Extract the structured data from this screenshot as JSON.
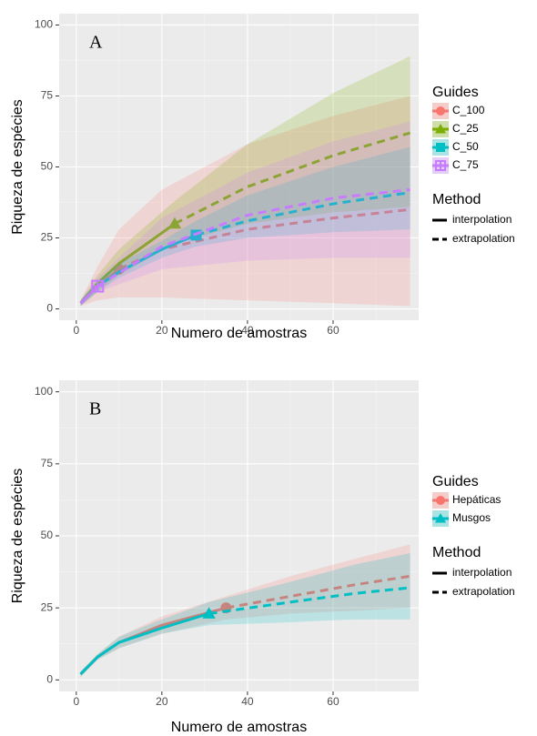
{
  "chart_data": [
    {
      "type": "line",
      "label": "A",
      "xlabel": "Numero de amostras",
      "ylabel": "Riqueza de espécies",
      "xlim": [
        -4,
        80
      ],
      "ylim": [
        -4,
        104
      ],
      "xticks": [
        0,
        20,
        40,
        60
      ],
      "yticks": [
        0,
        25,
        50,
        75,
        100
      ],
      "grid": true,
      "legend_title": "Guides",
      "method_title": "Method",
      "method_labels": [
        "interpolation",
        "extrapolation"
      ],
      "series": [
        {
          "name": "C_100",
          "color": "#F8766D",
          "marker": "circle",
          "observed_index": 2,
          "x": [
            1,
            5,
            10,
            20,
            40,
            60,
            78
          ],
          "values": [
            2,
            8,
            14,
            21,
            28,
            32,
            35
          ],
          "lower": [
            1,
            3,
            4,
            4,
            3,
            2,
            1
          ],
          "upper": [
            3,
            15,
            28,
            42,
            58,
            68,
            75
          ]
        },
        {
          "name": "C_25",
          "color": "#7CAE00",
          "marker": "triangle",
          "observed_index": 3,
          "x": [
            1,
            5,
            10,
            23,
            40,
            60,
            78
          ],
          "values": [
            2,
            9,
            16,
            30,
            43,
            54,
            62
          ],
          "lower": [
            1,
            6,
            12,
            23,
            30,
            34,
            36
          ],
          "upper": [
            3,
            12,
            21,
            38,
            58,
            76,
            89
          ]
        },
        {
          "name": "C_50",
          "color": "#00BFC4",
          "marker": "square",
          "observed_index": 4,
          "x": [
            1,
            5,
            10,
            20,
            28,
            40,
            60,
            78
          ],
          "values": [
            2,
            8,
            13,
            21,
            26,
            31,
            37,
            41
          ],
          "lower": [
            1,
            6,
            11,
            18,
            22,
            25,
            27,
            28
          ],
          "upper": [
            3,
            10,
            16,
            24,
            31,
            40,
            50,
            57
          ]
        },
        {
          "name": "C_75",
          "color": "#C77CFF",
          "marker": "square-plus",
          "observed_index": 1,
          "x": [
            1,
            5,
            20,
            40,
            60,
            78
          ],
          "values": [
            2,
            8,
            22,
            33,
            39,
            42
          ],
          "lower": [
            1,
            6,
            14,
            17,
            18,
            18
          ],
          "upper": [
            3,
            11,
            32,
            48,
            59,
            66
          ]
        }
      ]
    },
    {
      "type": "line",
      "label": "B",
      "xlabel": "Numero de amostras",
      "ylabel": "Riqueza de espécies",
      "xlim": [
        -4,
        80
      ],
      "ylim": [
        -4,
        104
      ],
      "xticks": [
        0,
        20,
        40,
        60
      ],
      "yticks": [
        0,
        25,
        50,
        75,
        100
      ],
      "grid": true,
      "legend_title": "Guides",
      "method_title": "Method",
      "method_labels": [
        "interpolation",
        "extrapolation"
      ],
      "series": [
        {
          "name": "Hepáticas",
          "color": "#F8766D",
          "marker": "circle",
          "observed_index": 4,
          "x": [
            1,
            5,
            10,
            20,
            35,
            50,
            65,
            78
          ],
          "values": [
            2,
            8,
            13,
            19,
            25,
            29,
            33,
            36
          ],
          "lower": [
            1,
            7,
            11,
            16,
            21,
            23,
            24,
            25
          ],
          "upper": [
            3,
            9,
            15,
            22,
            29,
            36,
            42,
            47
          ]
        },
        {
          "name": "Musgos",
          "color": "#00BFC4",
          "marker": "triangle",
          "observed_index": 4,
          "x": [
            1,
            5,
            10,
            20,
            31,
            50,
            65,
            78
          ],
          "values": [
            2,
            8,
            13,
            18,
            23,
            27,
            30,
            32
          ],
          "lower": [
            1,
            7,
            11,
            16,
            19,
            20,
            21,
            21
          ],
          "upper": [
            3,
            9,
            15,
            21,
            27,
            34,
            40,
            44
          ]
        }
      ]
    }
  ]
}
